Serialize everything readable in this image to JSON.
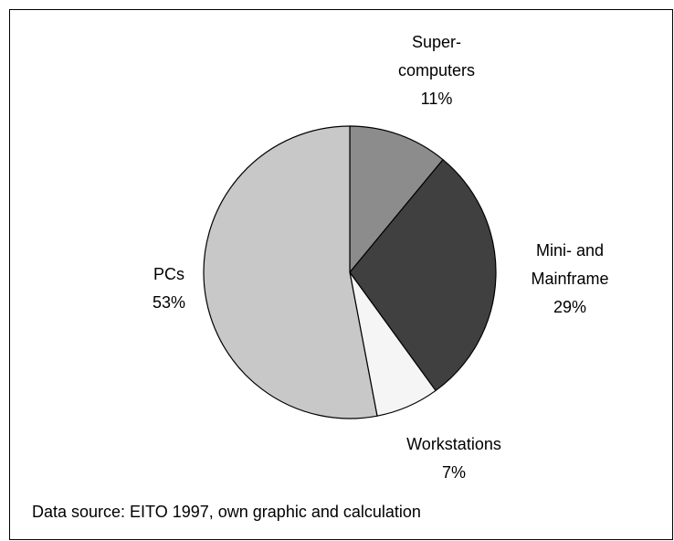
{
  "chart_data": {
    "type": "pie",
    "categories": [
      [
        "Super-",
        "computers"
      ],
      [
        "Mini- and",
        "Mainframe"
      ],
      [
        "Workstations"
      ],
      [
        "PCs"
      ]
    ],
    "values": [
      11,
      29,
      7,
      53
    ],
    "value_labels": [
      "11%",
      "29%",
      "7%",
      "53%"
    ],
    "colors": [
      "#8c8c8c",
      "#404040",
      "#f5f5f5",
      "#c8c8c8"
    ],
    "note": "Data source: EITO 1997, own graphic and calculation"
  }
}
